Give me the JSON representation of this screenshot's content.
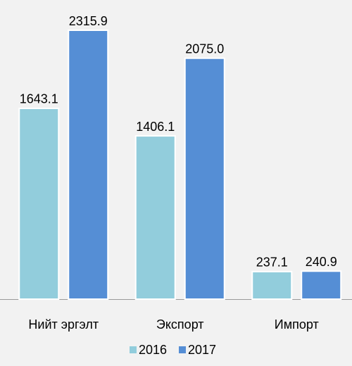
{
  "chart_data": {
    "type": "bar",
    "categories": [
      "Нийт эргэлт",
      "Экспорт",
      "Импорт"
    ],
    "series": [
      {
        "name": "2016",
        "color": "#92cddc",
        "values": [
          1643.1,
          1406.1,
          237.1
        ],
        "value_labels": [
          "1643.1",
          "1406.1",
          "237.1"
        ]
      },
      {
        "name": "2017",
        "color": "#558ed5",
        "values": [
          2315.9,
          2075.0,
          240.9
        ],
        "value_labels": [
          "2315.9",
          "2075.0",
          "240.9"
        ]
      }
    ],
    "legend": "bottom"
  }
}
